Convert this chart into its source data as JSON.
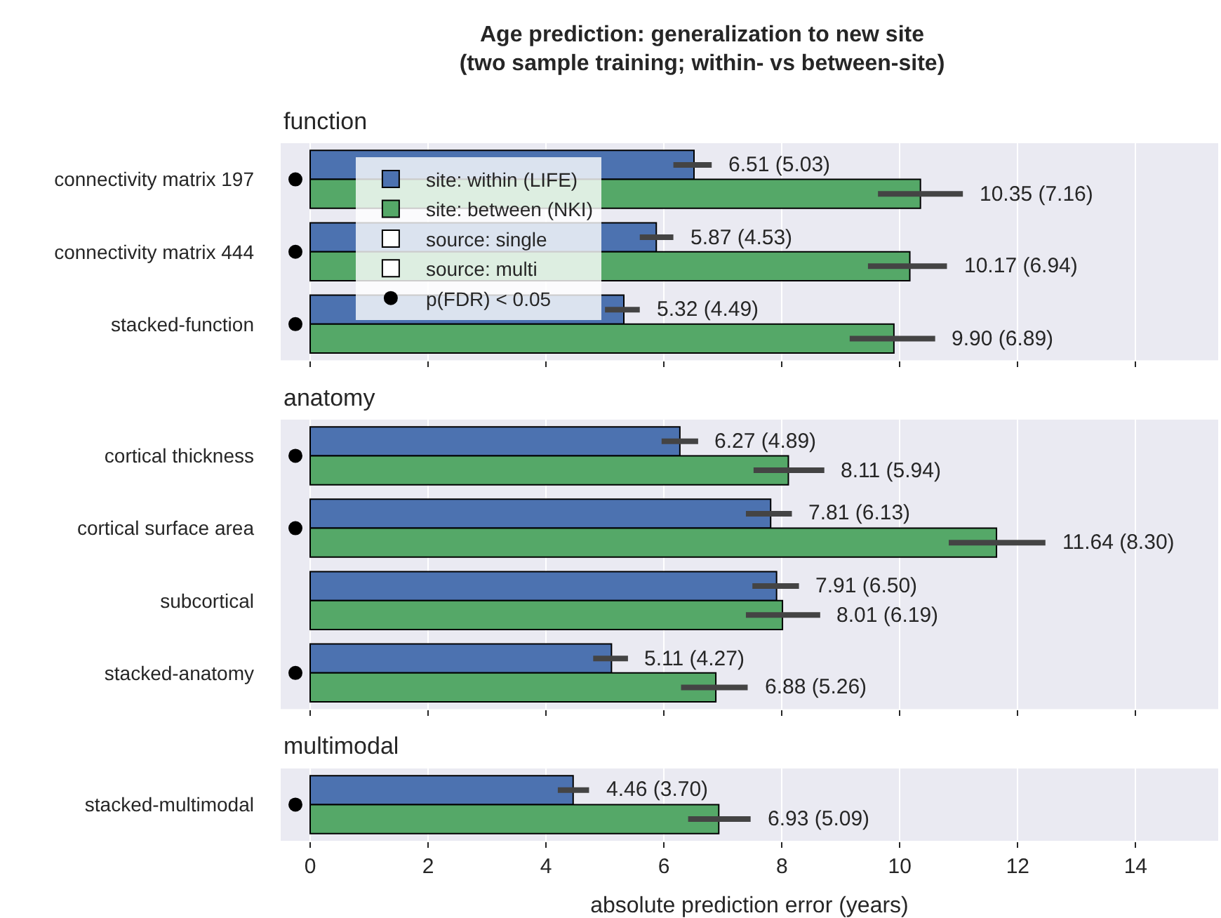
{
  "chart_data": [
    {
      "type": "bar",
      "orientation": "horizontal",
      "title": "Age prediction: generalization to new site\n(two sample training; within- vs between-site)",
      "subtitle": "function",
      "categories": [
        "connectivity matrix 197",
        "connectivity matrix 444",
        "stacked-function"
      ],
      "xlim": [
        -0.5,
        15.4
      ],
      "xticks": [
        0,
        2,
        4,
        6,
        8,
        10,
        12,
        14
      ],
      "tick_labels": "y",
      "grid": "x",
      "legend": "top left",
      "series": [
        {
          "name": "site: within (LIFE)",
          "color": "#4c72b0",
          "values": [
            6.51,
            5.87,
            5.32
          ],
          "errors": [
            [
              6.16,
              6.81
            ],
            [
              5.59,
              6.16
            ],
            [
              5.0,
              5.59
            ]
          ],
          "value_labels": [
            "6.51 (5.03)",
            "5.87 (4.53)",
            "5.32 (4.49)"
          ]
        },
        {
          "name": "site: between (NKI)",
          "color": "#55a868",
          "values": [
            10.35,
            10.17,
            9.9
          ],
          "errors": [
            [
              9.63,
              11.07
            ],
            [
              9.46,
              10.8
            ],
            [
              9.15,
              10.6
            ]
          ],
          "value_labels": [
            "10.35 (7.16)",
            "10.17 (6.94)",
            "9.90 (6.89)"
          ]
        },
        {
          "name": "source: single",
          "color": "#ffffff",
          "values": [
            null,
            null,
            null
          ]
        },
        {
          "name": "source: multi",
          "color": "#ffffff",
          "values": [
            null,
            null,
            null
          ]
        },
        {
          "name": "p(FDR) < 0.05",
          "type": "scatter",
          "marker": "circle",
          "color": "#000000",
          "values": [
            -0.25,
            -0.25,
            -0.25
          ]
        }
      ]
    },
    {
      "type": "bar",
      "orientation": "horizontal",
      "subtitle": "anatomy",
      "categories": [
        "cortical thickness",
        "cortical surface area",
        "subcortical",
        "stacked-anatomy"
      ],
      "xlim": [
        -0.5,
        15.4
      ],
      "xticks": [
        0,
        2,
        4,
        6,
        8,
        10,
        12,
        14
      ],
      "tick_labels": "y",
      "grid": "x",
      "series": [
        {
          "color": "#4c72b0",
          "values": [
            6.27,
            7.81,
            7.91,
            5.11
          ],
          "errors": [
            [
              5.96,
              6.58
            ],
            [
              7.39,
              8.17
            ],
            [
              7.5,
              8.29
            ],
            [
              4.8,
              5.39
            ]
          ],
          "value_labels": [
            "6.27 (4.89)",
            "7.81 (6.13)",
            "7.91 (6.50)",
            "5.11 (4.27)"
          ]
        },
        {
          "color": "#55a868",
          "values": [
            8.11,
            11.64,
            8.01,
            6.88
          ],
          "errors": [
            [
              7.52,
              8.72
            ],
            [
              10.83,
              12.47
            ],
            [
              7.39,
              8.65
            ],
            [
              6.29,
              7.42
            ]
          ],
          "value_labels": [
            "8.11 (5.94)",
            "11.64 (8.30)",
            "8.01 (6.19)",
            "6.88 (5.26)"
          ]
        },
        {
          "type": "scatter",
          "marker": "circle",
          "color": "#000000",
          "values": [
            -0.25,
            -0.25,
            null,
            -0.25
          ]
        }
      ]
    },
    {
      "type": "bar",
      "orientation": "horizontal",
      "subtitle": "multimodal",
      "categories": [
        "stacked-multimodal"
      ],
      "xlabel": "absolute prediction error (years)",
      "xlim": [
        -0.5,
        15.4
      ],
      "xticks": [
        0,
        2,
        4,
        6,
        8,
        10,
        12,
        14
      ],
      "grid": "x",
      "series": [
        {
          "color": "#4c72b0",
          "values": [
            4.46
          ],
          "errors": [
            [
              4.2,
              4.73
            ]
          ],
          "value_labels": [
            "4.46 (3.70)"
          ]
        },
        {
          "color": "#55a868",
          "values": [
            6.93
          ],
          "errors": [
            [
              6.41,
              7.47
            ]
          ],
          "value_labels": [
            "6.93 (5.09)"
          ]
        },
        {
          "type": "scatter",
          "marker": "circle",
          "color": "#000000",
          "values": [
            -0.25
          ]
        }
      ]
    }
  ]
}
